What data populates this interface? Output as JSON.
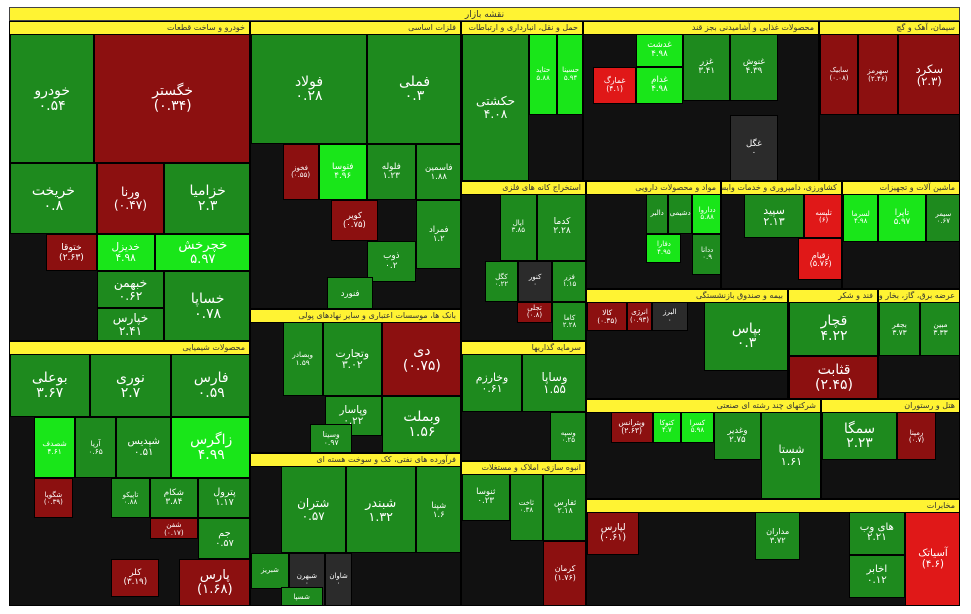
{
  "map": {
    "title": "نقشه بازار"
  },
  "colors": {
    "up": "#1e8a1e",
    "up_light": "#19e619",
    "down": "#8c1010",
    "down_strong": "#e01818",
    "zero": "#2b2b2b",
    "label_bar": "#fff333"
  },
  "chart_data": {
    "type": "treemap",
    "title": "نقشه بازار",
    "sectors": [
      {
        "name": "خودرو و ساخت قطعات",
        "tiles": [
          {
            "symbol": "خگستر",
            "value": "(۰.۳۴)",
            "change": -0.34
          },
          {
            "symbol": "خودرو",
            "value": "۰.۵۴",
            "change": 0.54
          },
          {
            "symbol": "خزامیا",
            "value": "۲.۳",
            "change": 2.3
          },
          {
            "symbol": "ورنا",
            "value": "(۰.۴۷)",
            "change": -0.47
          },
          {
            "symbol": "خریخت",
            "value": "۰.۸",
            "change": 0.8
          },
          {
            "symbol": "خچرخش",
            "value": "۵.۹۷",
            "change": 5.97
          },
          {
            "symbol": "خدیزل",
            "value": "۴.۹۸",
            "change": 4.98
          },
          {
            "symbol": "ختوقا",
            "value": "(۲.۶۳)",
            "change": -2.63
          },
          {
            "symbol": "خساپا",
            "value": "۰.۷۸",
            "change": 0.78
          },
          {
            "symbol": "خبهمن",
            "value": "۰.۶۲",
            "change": 0.62
          },
          {
            "symbol": "خپارس",
            "value": "۲.۴۱",
            "change": 2.41
          }
        ]
      },
      {
        "name": "فلزات اساسی",
        "tiles": [
          {
            "symbol": "فملی",
            "value": "۰.۳",
            "change": 0.3
          },
          {
            "symbol": "فولاد",
            "value": "۰.۲۸",
            "change": 0.28
          },
          {
            "symbol": "فاسمین",
            "value": "۱.۸۸",
            "change": 1.88
          },
          {
            "symbol": "فلوله",
            "value": "۱.۲۳",
            "change": 1.23
          },
          {
            "symbol": "فتوسا",
            "value": "۴.۹۶",
            "change": 4.96
          },
          {
            "symbol": "فخوز",
            "value": "(۰.۵۵)",
            "change": -0.55
          },
          {
            "symbol": "کویر",
            "value": "(۰.۷۵)",
            "change": -0.75
          },
          {
            "symbol": "فمراد",
            "value": "۱.۲",
            "change": 1.2
          },
          {
            "symbol": "ذوب",
            "value": "۰.۲",
            "change": 0.2
          },
          {
            "symbol": "فنورد",
            "value": "",
            "change": 3.5
          }
        ]
      },
      {
        "name": "حمل و نقل، انبارداری و ارتباطات",
        "tiles": [
          {
            "symbol": "حکشتی",
            "value": "۴.۰۸",
            "change": 4.08
          },
          {
            "symbol": "حتاید",
            "value": "۵.۸۸",
            "change": 5.88
          },
          {
            "symbol": "حسینا",
            "value": "۵.۹۴",
            "change": 5.94
          }
        ]
      },
      {
        "name": "محصولات غذایی و آشامیدنی بجز قند",
        "tiles": [
          {
            "symbol": "غنوش",
            "value": "۴.۳۹",
            "change": 4.39
          },
          {
            "symbol": "غزر",
            "value": "۳.۴۱",
            "change": 3.41
          },
          {
            "symbol": "غدشت",
            "value": "۴.۹۸",
            "change": 4.98
          },
          {
            "symbol": "غدام",
            "value": "۴.۹۸",
            "change": 4.98
          },
          {
            "symbol": "غمارگ",
            "value": "(۴.۱)",
            "change": -4.1
          },
          {
            "symbol": "غگل",
            "value": "۰",
            "change": 0
          }
        ]
      },
      {
        "name": "سیمان، آهک و گچ",
        "tiles": [
          {
            "symbol": "سکرد",
            "value": "(۲.۳)",
            "change": -2.3
          },
          {
            "symbol": "سهرمز",
            "value": "(۲.۴۶)",
            "change": -2.46
          },
          {
            "symbol": "سابیک",
            "value": "(۰.۰۸)",
            "change": -0.08
          }
        ]
      },
      {
        "name": "محصولات شیمیایی",
        "tiles": [
          {
            "symbol": "فارس",
            "value": "۰.۵۹",
            "change": 0.59
          },
          {
            "symbol": "نوری",
            "value": "۲.۷",
            "change": 2.7
          },
          {
            "symbol": "بوعلی",
            "value": "۳.۶۷",
            "change": 3.67
          },
          {
            "symbol": "زاگرس",
            "value": "۴.۹۹",
            "change": 4.99
          },
          {
            "symbol": "شپدیس",
            "value": "۰.۵۱",
            "change": 0.51
          },
          {
            "symbol": "آریا",
            "value": "۰.۶۵",
            "change": 0.65
          },
          {
            "symbol": "شصدف",
            "value": "۴.۶۱",
            "change": 4.61
          },
          {
            "symbol": "پترول",
            "value": "۱.۱۷",
            "change": 1.17
          },
          {
            "symbol": "شکام",
            "value": "۳.۸۴",
            "change": 3.84
          },
          {
            "symbol": "تاپیکو",
            "value": "۰.۸۸",
            "change": 0.88
          },
          {
            "symbol": "شگویا",
            "value": "(۰.۳۹)",
            "change": -0.39
          },
          {
            "symbol": "جم",
            "value": "۰.۵۷",
            "change": 0.57
          },
          {
            "symbol": "شفن",
            "value": "(۰.۱۷)",
            "change": -0.17
          },
          {
            "symbol": "پارس",
            "value": "(۱.۶۸)",
            "change": -1.68
          },
          {
            "symbol": "کلر",
            "value": "(۳.۱۹)",
            "change": -3.19
          }
        ]
      },
      {
        "name": "بانک ها، موسسات اعتباری و سایر نهادهای پولی",
        "tiles": [
          {
            "symbol": "دی",
            "value": "(۰.۷۵)",
            "change": -0.75
          },
          {
            "symbol": "وتجارت",
            "value": "۳.۰۲",
            "change": 3.02
          },
          {
            "symbol": "وبصادر",
            "value": "۱.۵۹",
            "change": 1.59
          },
          {
            "symbol": "وبملت",
            "value": "۱.۵۶",
            "change": 1.56
          },
          {
            "symbol": "وپاسار",
            "value": "۰.۲۲",
            "change": 0.22
          },
          {
            "symbol": "وسینا",
            "value": "۰.۹۷",
            "change": 0.97
          }
        ]
      },
      {
        "name": "فرآورده های نفتی، کک و سوخت هسته ای",
        "tiles": [
          {
            "symbol": "شپنا",
            "value": "۱.۶",
            "change": 1.6
          },
          {
            "symbol": "شبندر",
            "value": "۱.۳۲",
            "change": 1.32
          },
          {
            "symbol": "شتران",
            "value": "۰.۵۷",
            "change": 0.57
          },
          {
            "symbol": "شاوان",
            "value": "۰",
            "change": 0
          },
          {
            "symbol": "شبهرن",
            "value": "۰",
            "change": 0
          },
          {
            "symbol": "شبریز",
            "value": "",
            "change": 1.0
          },
          {
            "symbol": "شسپا",
            "value": "",
            "change": 1.0
          }
        ]
      },
      {
        "name": "استخراج کانه های فلزی",
        "tiles": [
          {
            "symbol": "کدما",
            "value": "۲.۲۸",
            "change": 2.28
          },
          {
            "symbol": "اپال",
            "value": "۳.۸۵",
            "change": 3.85
          },
          {
            "symbol": "فزر",
            "value": "۱.۱۵",
            "change": 1.15
          },
          {
            "symbol": "کنور",
            "value": "۰",
            "change": 0
          },
          {
            "symbol": "کگل",
            "value": "۰.۲۲",
            "change": 0.22
          },
          {
            "symbol": "کاما",
            "value": "۲.۲۸",
            "change": 2.28
          },
          {
            "symbol": "تجلی",
            "value": "(۰.۸)",
            "change": -0.8
          }
        ]
      },
      {
        "name": "مواد و محصولات دارویی",
        "tiles": [
          {
            "symbol": "دداروا",
            "value": "۵.۸۸",
            "change": 5.88
          },
          {
            "symbol": "دشیمی",
            "value": "",
            "change": 3.0
          },
          {
            "symbol": "دالبر",
            "value": "",
            "change": 3.0
          },
          {
            "symbol": "دفارا",
            "value": "۴.۹۵",
            "change": 4.95
          },
          {
            "symbol": "ددانا",
            "value": "۰.۹",
            "change": 0.9
          }
        ]
      },
      {
        "name": "کشاورزی، دامپروری و خدمات وابسته به آن",
        "tiles": [
          {
            "symbol": "تلیسه",
            "value": "(۶)",
            "change": -6
          },
          {
            "symbol": "زقیام",
            "value": "(۵.۷۶)",
            "change": -5.76
          },
          {
            "symbol": "سپید",
            "value": "۲.۱۳",
            "change": 2.13
          }
        ]
      },
      {
        "name": "ماشین آلات و تجهیزات",
        "tiles": [
          {
            "symbol": "سیمر",
            "value": "۰.۶۷",
            "change": 0.67
          },
          {
            "symbol": "تاپرا",
            "value": "۵.۹۷",
            "change": 5.97
          },
          {
            "symbol": "لسرما",
            "value": "۴.۹۸",
            "change": 4.98
          }
        ]
      },
      {
        "name": "سرمایه گذاریها",
        "tiles": [
          {
            "symbol": "وساپا",
            "value": "۱.۵۵",
            "change": 1.55
          },
          {
            "symbol": "وخارزم",
            "value": "۰.۶۱",
            "change": 0.61
          },
          {
            "symbol": "وسپه",
            "value": "۰.۲۵",
            "change": 0.25
          }
        ]
      },
      {
        "name": "بیمه و صندوق بازنشستگی",
        "tiles": [
          {
            "symbol": "بپاس",
            "value": "۰.۳",
            "change": 0.3
          },
          {
            "symbol": "البرز",
            "value": "۰",
            "change": 0
          },
          {
            "symbol": "انرژی",
            "value": "(۰.۹۳)",
            "change": -0.93
          },
          {
            "symbol": "کالا",
            "value": "(۰.۳۵)",
            "change": -0.35
          }
        ]
      },
      {
        "name": "فند و شکر",
        "tiles": [
          {
            "symbol": "قچار",
            "value": "۴.۲۲",
            "change": 4.22
          },
          {
            "symbol": "قثابت",
            "value": "(۲.۴۵)",
            "change": -2.45
          }
        ]
      },
      {
        "name": "عرضه برق، گاز، بخار و آب گرم",
        "tiles": [
          {
            "symbol": "مبین",
            "value": "۳.۳۳",
            "change": 3.33
          },
          {
            "symbol": "بجفر",
            "value": "۳.۷۳",
            "change": 3.73
          }
        ]
      },
      {
        "name": "شرکتهای چند رشته ای صنعتی",
        "tiles": [
          {
            "symbol": "شستا",
            "value": "۱.۶۱",
            "change": 1.61
          },
          {
            "symbol": "وغدیر",
            "value": "۲.۷۵",
            "change": 2.75
          },
          {
            "symbol": "کسرا",
            "value": "۵.۹۸",
            "change": 5.98
          },
          {
            "symbol": "کتوکا",
            "value": "۴.۷",
            "change": 4.7
          },
          {
            "symbol": "وبترانس",
            "value": "(۲.۶۳)",
            "change": -2.63
          }
        ]
      },
      {
        "name": "هتل و رستوران",
        "tiles": [
          {
            "symbol": "رمپنا",
            "value": "(۰.۷)",
            "change": -0.7
          },
          {
            "symbol": "سمگا",
            "value": "۲.۲۳",
            "change": 2.23
          }
        ]
      },
      {
        "name": "انبوه سازی، املاک و مستغلات",
        "tiles": [
          {
            "symbol": "ثفارس",
            "value": "۲.۱۸",
            "change": 2.18
          },
          {
            "symbol": "ثاخت",
            "value": "۰.۳۸",
            "change": 0.38
          },
          {
            "symbol": "ثنوسا",
            "value": "۰.۲۳",
            "change": 0.23
          },
          {
            "symbol": "کرمان",
            "value": "(۱.۷۶)",
            "change": -1.76
          }
        ]
      },
      {
        "name": "مخابرات",
        "tiles": [
          {
            "symbol": "آسیاتک",
            "value": "(۴.۶)",
            "change": -4.6
          },
          {
            "symbol": "های وب",
            "value": "۲.۲۱",
            "change": 2.21
          },
          {
            "symbol": "اخابر",
            "value": "۰.۱۲",
            "change": 0.12
          },
          {
            "symbol": "مداران",
            "value": "۳.۷۲",
            "change": 3.72
          },
          {
            "symbol": "لپارس",
            "value": "(۰.۶۱)",
            "change": -0.61
          }
        ]
      }
    ]
  }
}
